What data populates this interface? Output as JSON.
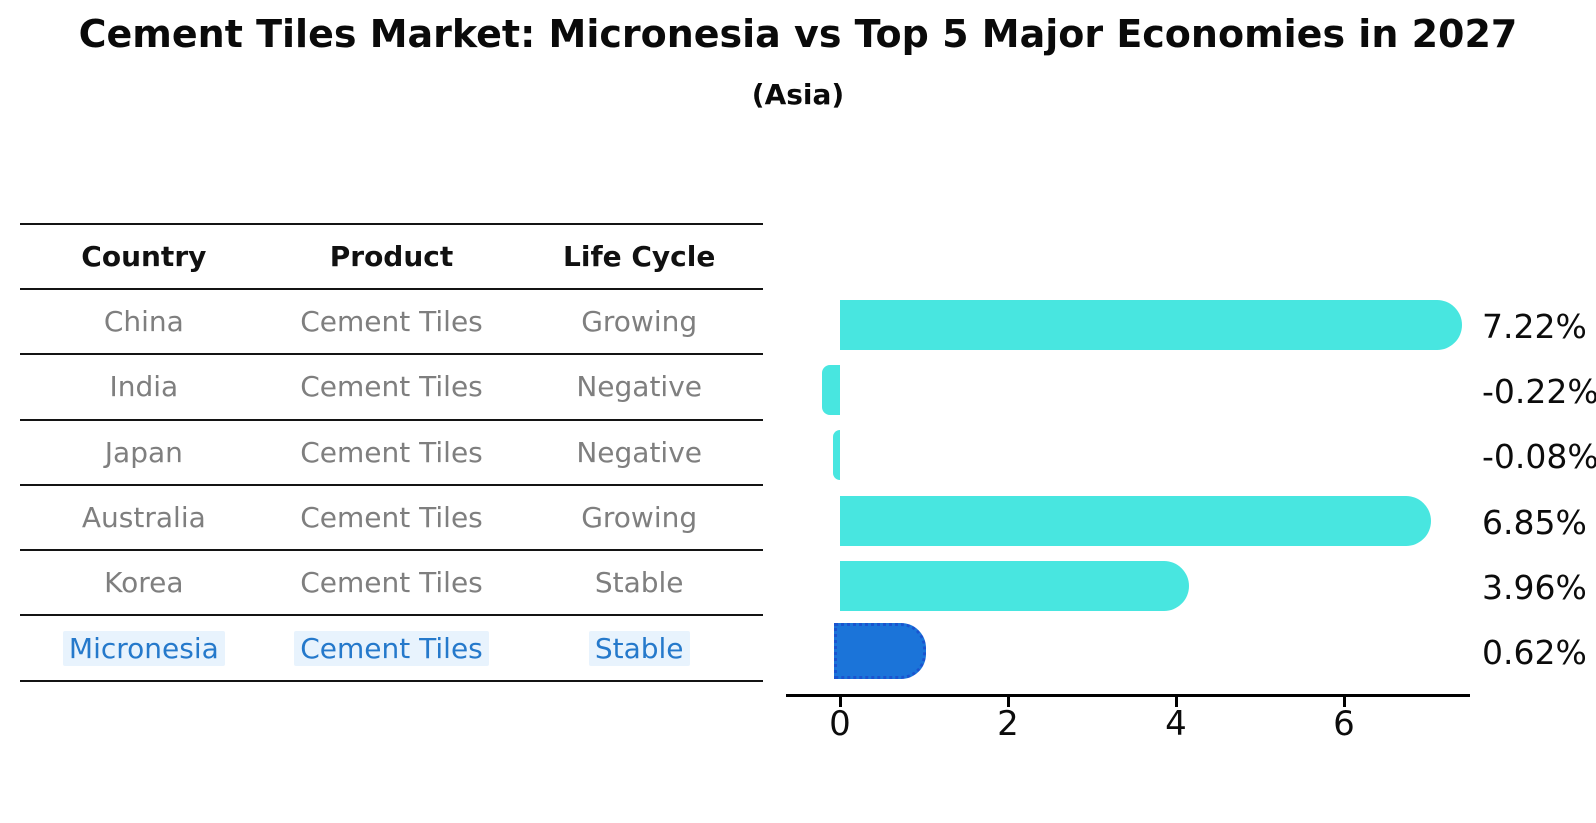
{
  "title": "Cement Tiles Market: Micronesia vs Top 5 Major Economies in 2027",
  "subtitle": "(Asia)",
  "table": {
    "headers": [
      "Country",
      "Product",
      "Life Cycle"
    ],
    "rows": [
      {
        "country": "China",
        "product": "Cement Tiles",
        "life_cycle": "Growing",
        "highlight": false
      },
      {
        "country": "India",
        "product": "Cement Tiles",
        "life_cycle": "Negative",
        "highlight": false
      },
      {
        "country": "Japan",
        "product": "Cement Tiles",
        "life_cycle": "Negative",
        "highlight": false
      },
      {
        "country": "Australia",
        "product": "Cement Tiles",
        "life_cycle": "Growing",
        "highlight": false
      },
      {
        "country": "Korea",
        "product": "Cement Tiles",
        "life_cycle": "Stable",
        "highlight": false
      },
      {
        "country": "Micronesia",
        "product": "Cement Tiles",
        "life_cycle": "Stable",
        "highlight": true
      }
    ]
  },
  "chart_data": {
    "type": "bar",
    "orientation": "horizontal",
    "title": "Cement Tiles Market: Micronesia vs Top 5 Major Economies in 2027 (Asia)",
    "categories": [
      "China",
      "India",
      "Japan",
      "Australia",
      "Korea",
      "Micronesia"
    ],
    "values": [
      7.22,
      -0.22,
      -0.08,
      6.85,
      3.96,
      0.62
    ],
    "value_labels": [
      "7.22%",
      "-0.22%",
      "-0.08%",
      "6.85%",
      "3.96%",
      "0.62%"
    ],
    "unit": "%",
    "xticks": [
      0,
      2,
      4,
      6
    ],
    "xlim": [
      -0.62,
      7.5
    ],
    "grid": false,
    "legend": "none",
    "bar_color": "#48e6e0",
    "highlight_color": "#1b74d9",
    "highlight_border_color": "#1a54cf",
    "highlight_index": 5
  },
  "colors": {
    "background": "#ffffff",
    "table_line": "#141414",
    "table_text": "#7f7f7f",
    "header_text": "#111111",
    "highlight_text": "#2579cb",
    "axis": "#000000"
  }
}
